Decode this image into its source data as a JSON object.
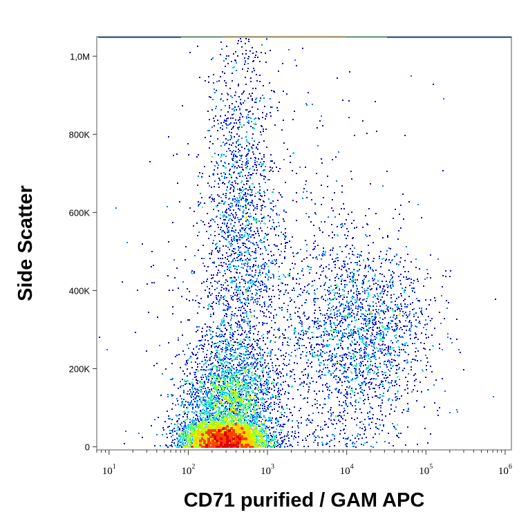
{
  "chart_data": {
    "type": "scatter",
    "title": "",
    "xlabel": "CD71 purified / GAM APC",
    "ylabel": "Side Scatter",
    "x_scale": "log",
    "xlim": [
      7,
      1200000
    ],
    "ylim": [
      -8000,
      1050000
    ],
    "x_ticks": [
      {
        "base": "10",
        "exp": "1",
        "value": 10
      },
      {
        "base": "10",
        "exp": "2",
        "value": 100
      },
      {
        "base": "10",
        "exp": "3",
        "value": 1000
      },
      {
        "base": "10",
        "exp": "4",
        "value": 10000
      },
      {
        "base": "10",
        "exp": "5",
        "value": 100000
      },
      {
        "base": "10",
        "exp": "6",
        "value": 1000000
      }
    ],
    "y_ticks": [
      {
        "label": "0",
        "value": 0
      },
      {
        "label": "200K",
        "value": 200000
      },
      {
        "label": "400K",
        "value": 400000
      },
      {
        "label": "600K",
        "value": 600000
      },
      {
        "label": "800K",
        "value": 800000
      },
      {
        "label": "1,0M",
        "value": 1000000
      }
    ],
    "density_colormap": [
      "#0000cc",
      "#0070ff",
      "#00d0ff",
      "#40ff80",
      "#c0ff00",
      "#ffd000",
      "#ff4000",
      "#e00000"
    ],
    "populations": [
      {
        "x_log_center": 2.45,
        "x_log_sd": 0.26,
        "y_center": 25000,
        "y_sd": 22000,
        "weight": 0.36
      },
      {
        "x_log_center": 2.5,
        "x_log_sd": 0.3,
        "y_center": 120000,
        "y_sd": 75000,
        "weight": 0.22
      },
      {
        "x_log_center": 2.65,
        "x_log_sd": 0.22,
        "y_center": 550000,
        "y_sd": 260000,
        "weight": 0.16
      },
      {
        "x_log_center": 4.15,
        "x_log_sd": 0.45,
        "y_center": 290000,
        "y_sd": 110000,
        "weight": 0.17
      },
      {
        "x_log_center": 3.2,
        "x_log_sd": 0.8,
        "y_center": 300000,
        "y_sd": 300000,
        "weight": 0.09
      }
    ],
    "grid": false,
    "legend": "none"
  }
}
